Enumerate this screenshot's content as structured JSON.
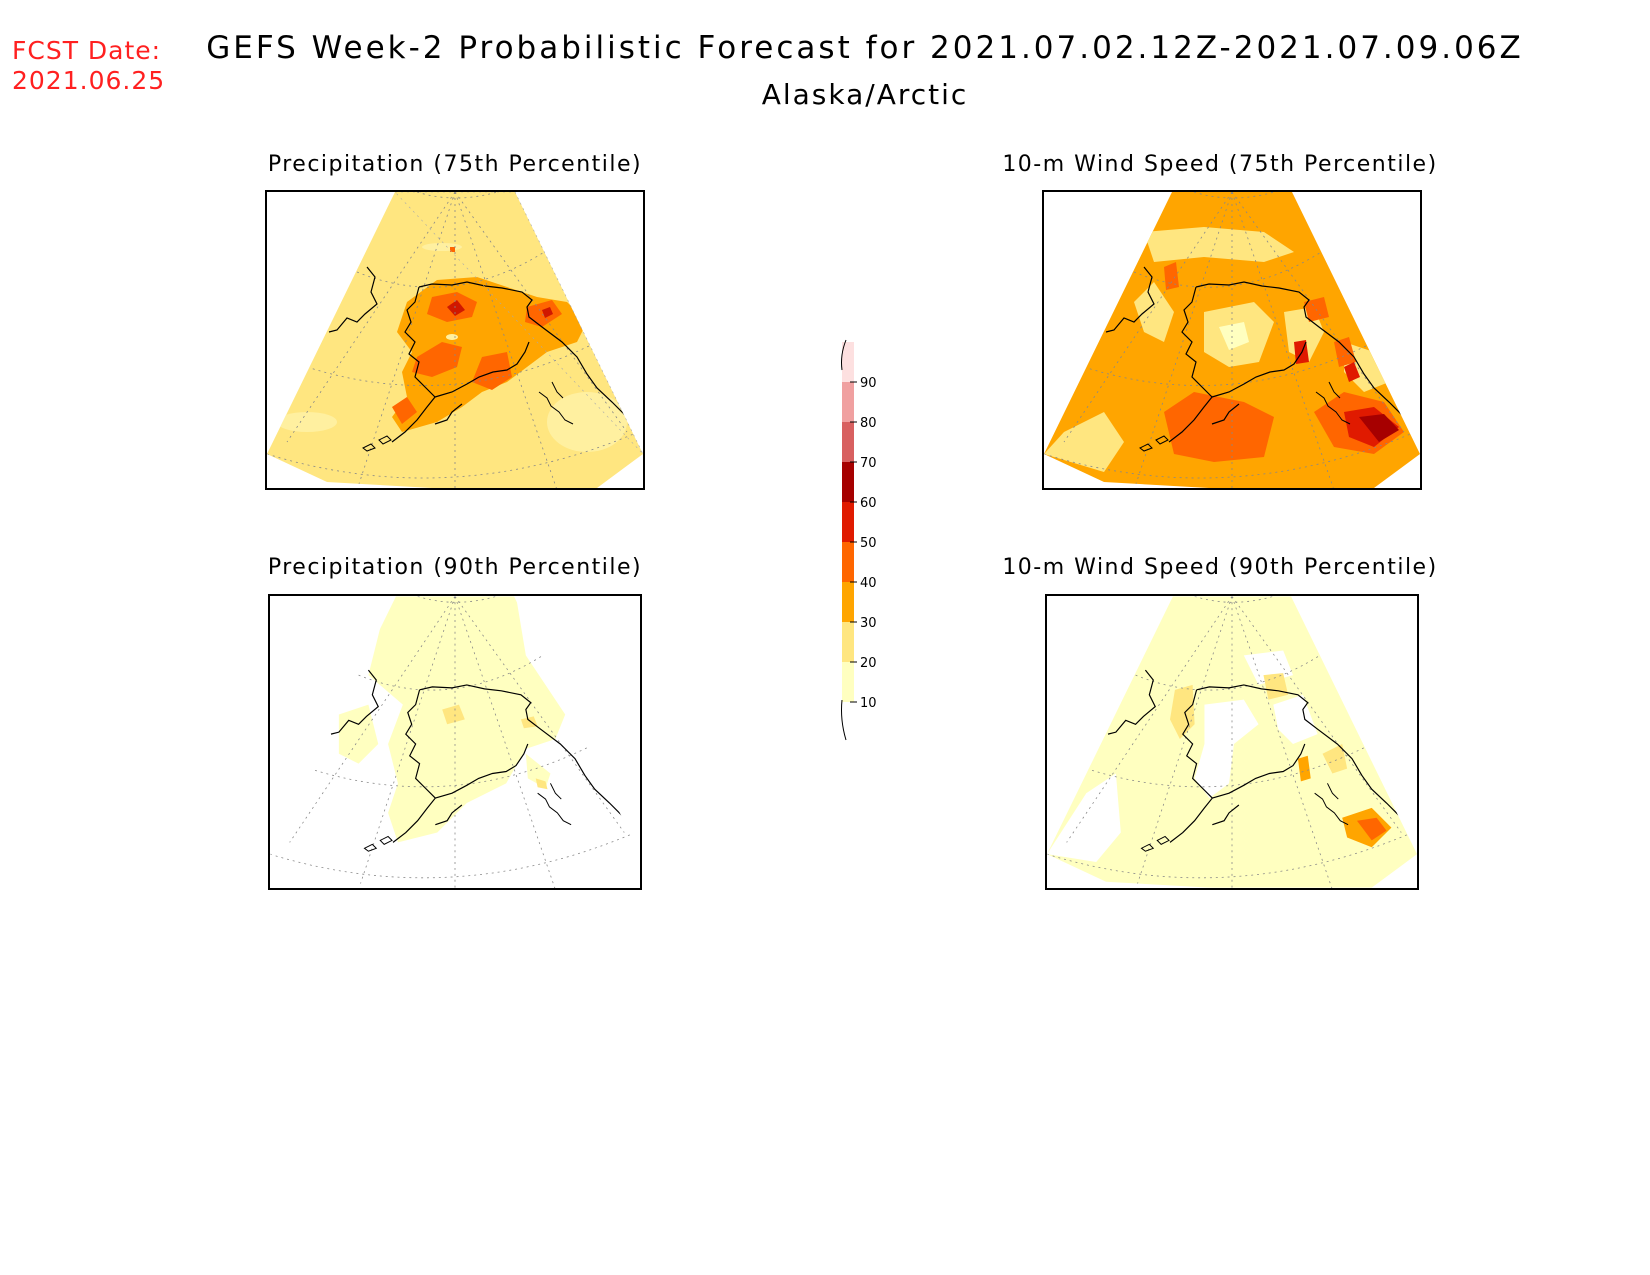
{
  "fcst_date": {
    "label": "FCST Date:",
    "value": "2021.06.25"
  },
  "title": "GEFS Week-2 Probabilistic Forecast for 2021.07.02.12Z-2021.07.09.06Z",
  "subtitle": "Alaska/Arctic",
  "panels": [
    {
      "title": "Precipitation (75th Percentile)"
    },
    {
      "title": "10-m Wind Speed (75th Percentile)"
    },
    {
      "title": "Precipitation (90th Percentile)"
    },
    {
      "title": "10-m Wind Speed (90th Percentile)"
    }
  ],
  "colorbar": {
    "levels": [
      "10",
      "20",
      "30",
      "40",
      "50",
      "60",
      "70",
      "80",
      "90"
    ],
    "colors": [
      "#ffffc0",
      "#ffe680",
      "#ffa500",
      "#ff6600",
      "#e01a00",
      "#a60000",
      "#d86060",
      "#f0a0a0",
      "#fde0e0"
    ]
  }
}
